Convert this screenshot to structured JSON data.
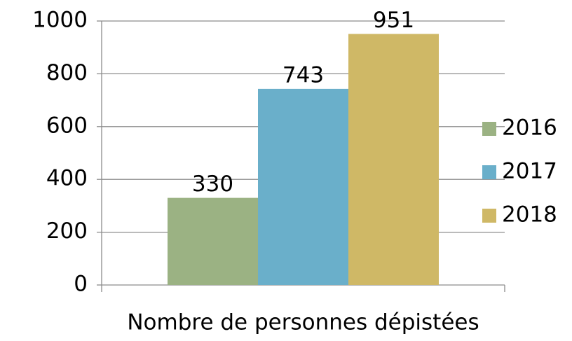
{
  "chart_data": {
    "type": "bar",
    "categories": [
      "Nombre de personnes dépistées"
    ],
    "series": [
      {
        "name": "2016",
        "color": "#9bb283",
        "values": [
          330
        ]
      },
      {
        "name": "2017",
        "color": "#6aafca",
        "values": [
          743
        ]
      },
      {
        "name": "2018",
        "color": "#cfb866",
        "values": [
          951
        ]
      }
    ],
    "ylim": [
      0,
      1000
    ],
    "yticks": [
      0,
      200,
      400,
      600,
      800,
      1000
    ],
    "grid": true,
    "legend": "right"
  }
}
